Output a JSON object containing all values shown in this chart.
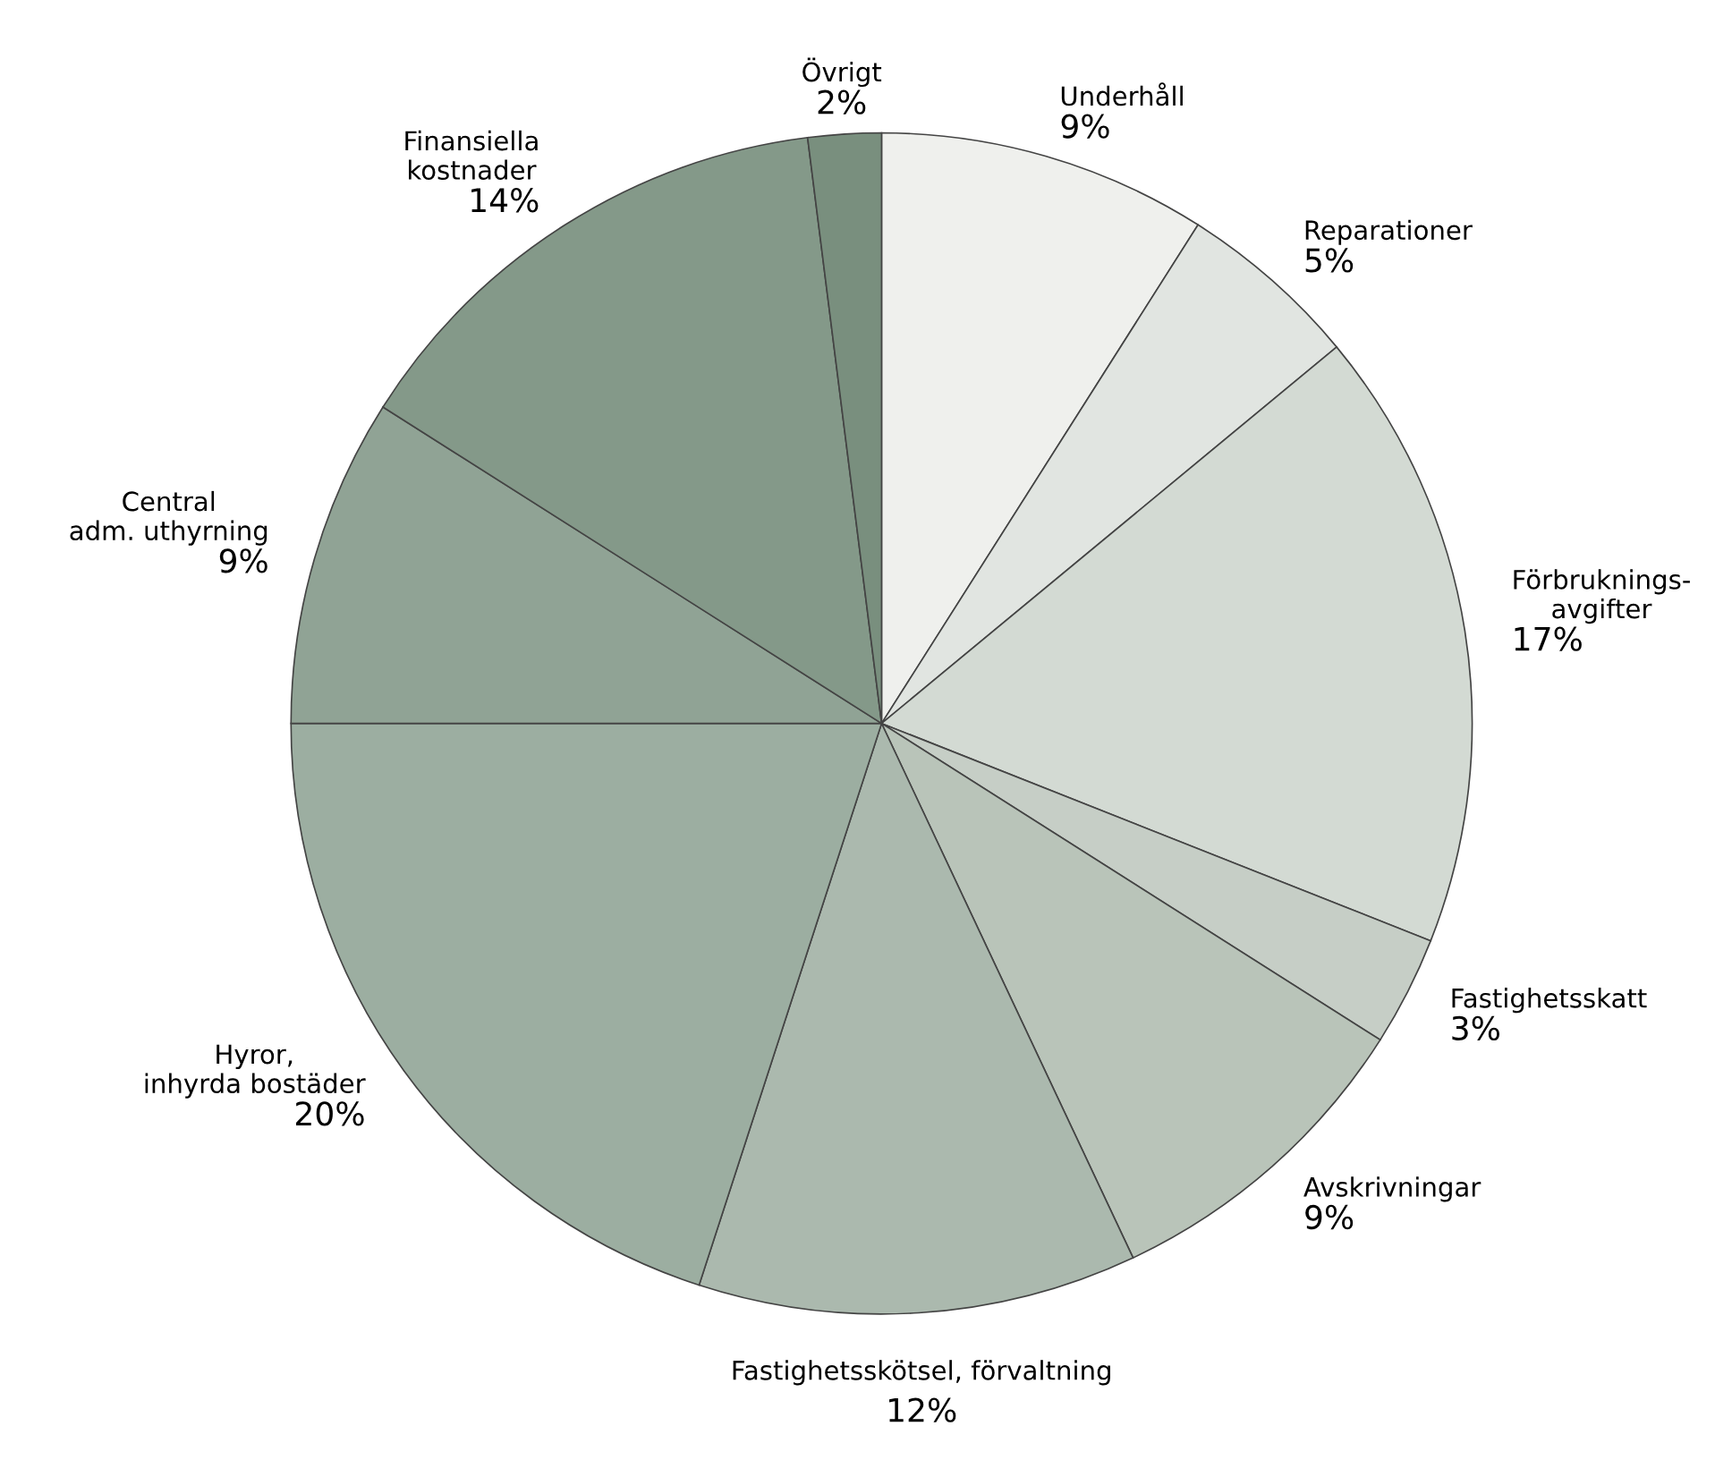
{
  "chart_data": {
    "type": "pie",
    "categories": [
      "Underhåll",
      "Reparationer",
      "Förbruknings-\navgifter",
      "Fastighetsskatt",
      "Avskrivningar",
      "Fastighetsskötsel, förvaltning",
      "Hyror,\ninhyrda bostäder",
      "Central\nadm. uthyrning",
      "Finansiella\nkostnader",
      "Övrigt"
    ],
    "values": [
      9,
      5,
      17,
      3,
      9,
      12,
      20,
      9,
      14,
      2
    ],
    "value_labels": [
      "9%",
      "5%",
      "17%",
      "3%",
      "9%",
      "12%",
      "20%",
      "9%",
      "14%",
      "2%"
    ],
    "colors": [
      "#eff0ed",
      "#e1e5e1",
      "#d3dad3",
      "#c6cec6",
      "#b9c4b9",
      "#abb9ae",
      "#9caea1",
      "#90a395",
      "#849989",
      "#798f7e"
    ]
  }
}
